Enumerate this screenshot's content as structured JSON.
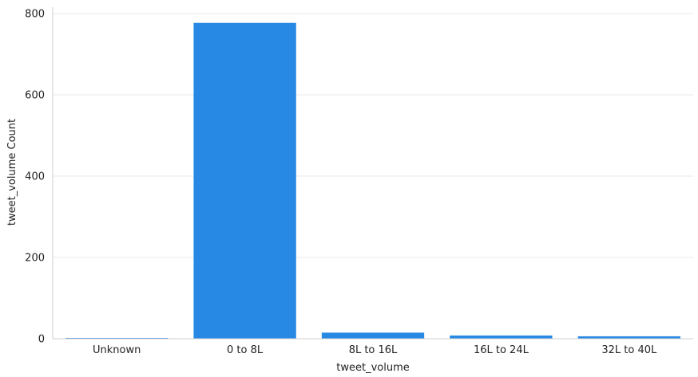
{
  "chart_data": {
    "type": "bar",
    "title": "",
    "xlabel": "tweet_volume",
    "ylabel": "tweet_volume Count",
    "categories": [
      "Unknown",
      "0 to 8L",
      "8L to 16L",
      "16L to 24L",
      "32L to 40L"
    ],
    "values": [
      2,
      777,
      15,
      8,
      6
    ],
    "ylim": [
      0,
      800
    ],
    "yticks": [
      0,
      200,
      400,
      600,
      800
    ],
    "grid": true,
    "legend": "none",
    "colors": {
      "bar": "#2789E3",
      "grid": "#EAEAEA",
      "axis": "#CFCFCF"
    }
  }
}
